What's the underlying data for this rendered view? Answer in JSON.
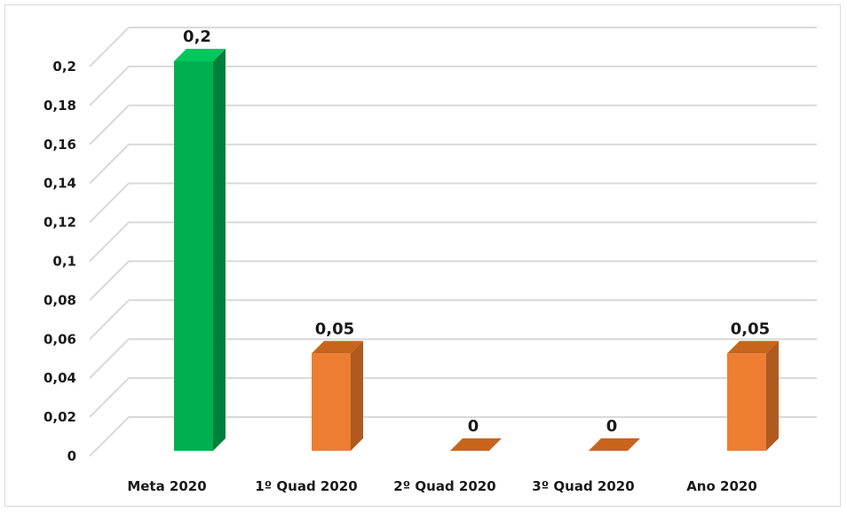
{
  "chart_data": {
    "type": "bar",
    "title": "",
    "xlabel": "",
    "ylabel": "",
    "categories": [
      "Meta 2020",
      "1º Quad 2020",
      "2º Quad 2020",
      "3º Quad 2020",
      "Ano 2020"
    ],
    "values": [
      0.2,
      0.05,
      0,
      0,
      0.05
    ],
    "data_labels": [
      "0,2",
      "0,05",
      "0",
      "0",
      "0,05"
    ],
    "ylim": [
      0,
      0.2
    ],
    "y_ticks": [
      0,
      0.02,
      0.04,
      0.06,
      0.08,
      0.1,
      0.12,
      0.14,
      0.16,
      0.18,
      0.2
    ],
    "y_tick_labels": [
      "0",
      "0,02",
      "0,04",
      "0,06",
      "0,08",
      "0,1",
      "0,12",
      "0,14",
      "0,16",
      "0,18",
      "0,2"
    ],
    "grid": true,
    "legend": "none",
    "style": "3d-column",
    "colors": {
      "target": "#00b050",
      "target_side": "#00803a",
      "target_top": "#00c85c",
      "actual": "#ed7d31",
      "actual_side": "#b05a1f",
      "actual_top": "#c8641c",
      "grid": "#d9d9d9"
    },
    "bar_color_keys": [
      "target",
      "actual",
      "actual",
      "actual",
      "actual"
    ]
  }
}
